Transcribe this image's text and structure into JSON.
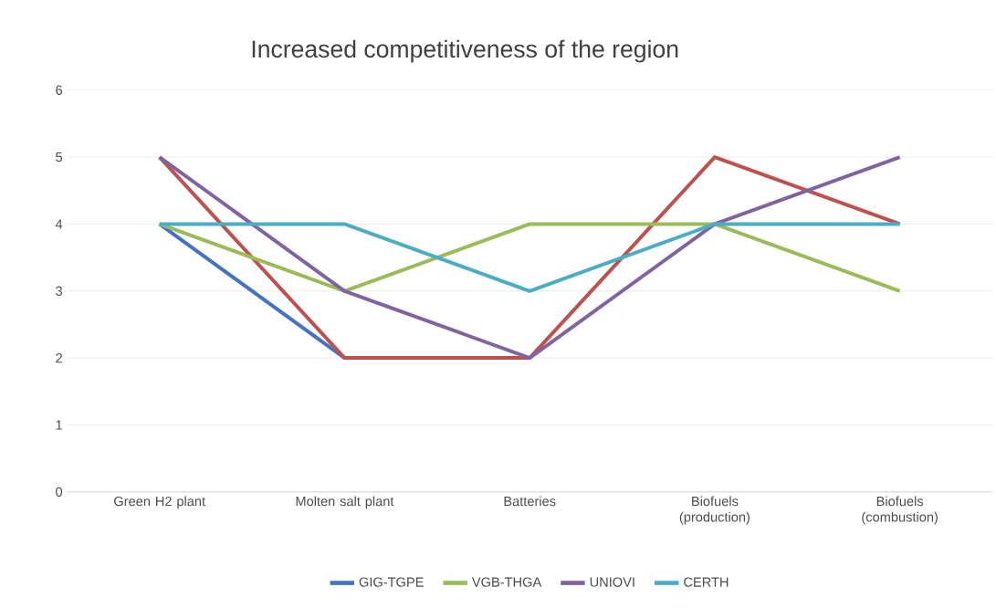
{
  "chart_data": {
    "type": "line",
    "title": "Increased competitiveness of the region",
    "categories": [
      "Green H2 plant",
      "Molten salt plant",
      "Batteries",
      "Biofuels (production)",
      "Biofuels (combustion)"
    ],
    "series": [
      {
        "name": "GIG-TGPE",
        "color": "#4472c4",
        "values": [
          4,
          2,
          null,
          null,
          null
        ]
      },
      {
        "color": "#c0504d",
        "values": [
          5,
          2,
          2,
          5,
          4
        ]
      },
      {
        "name": "VGB-THGA",
        "color": "#9bbb59",
        "values": [
          4,
          3,
          4,
          4,
          3
        ]
      },
      {
        "name": "UNIOVI",
        "color": "#8064a2",
        "values": [
          5,
          3,
          2,
          4,
          5
        ]
      },
      {
        "name": "CERTH",
        "color": "#4bacc6",
        "values": [
          4,
          4,
          3,
          4,
          4
        ]
      }
    ],
    "ylim": [
      0,
      6
    ],
    "yticks": [
      0,
      1,
      2,
      3,
      4,
      5,
      6
    ],
    "grid": "y",
    "legend": "bottom",
    "marker": "none",
    "line_style": "solid"
  }
}
